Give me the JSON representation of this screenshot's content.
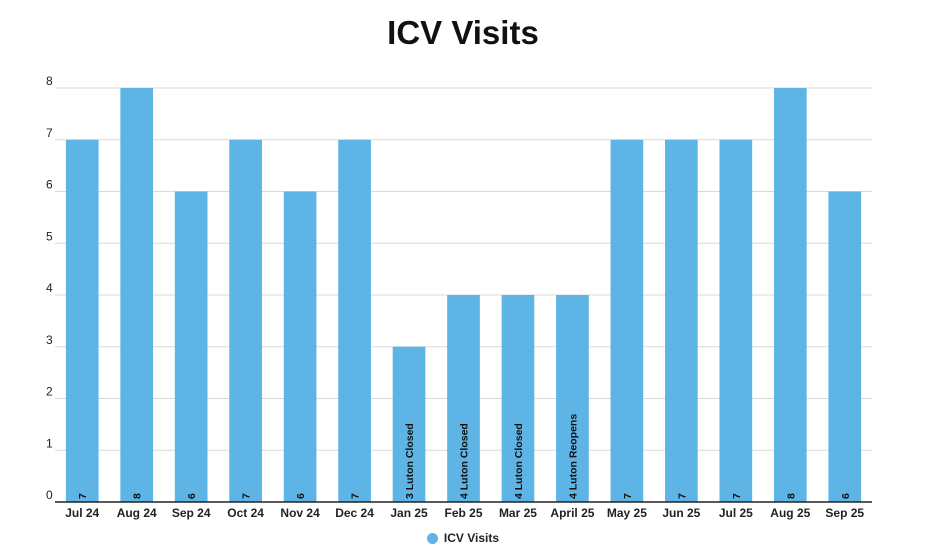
{
  "chart_data": {
    "type": "bar",
    "title": "ICV Visits",
    "categories": [
      "Jul 24",
      "Aug 24",
      "Sep 24",
      "Oct 24",
      "Nov 24",
      "Dec 24",
      "Jan 25",
      "Feb 25",
      "Mar 25",
      "April 25",
      "May 25",
      "Jun 25",
      "Jul 25",
      "Aug 25",
      "Sep 25"
    ],
    "series": [
      {
        "name": "ICV Visits",
        "color": "#5db4e5",
        "values": [
          7,
          8,
          6,
          7,
          6,
          7,
          3,
          4,
          4,
          4,
          7,
          7,
          7,
          8,
          6
        ]
      }
    ],
    "data_labels": [
      "7",
      "8",
      "6",
      "7",
      "6",
      "7",
      "3 Luton Closed",
      "4 Luton Closed",
      "4 Luton Closed",
      "4 Luton Reopens",
      "7",
      "7",
      "7",
      "8",
      "6"
    ],
    "yticks": [
      "0",
      "1",
      "2",
      "3",
      "4",
      "5",
      "6",
      "7",
      "8"
    ],
    "ylim": [
      0,
      8
    ],
    "grid": true,
    "legend_position": "bottom-center"
  }
}
